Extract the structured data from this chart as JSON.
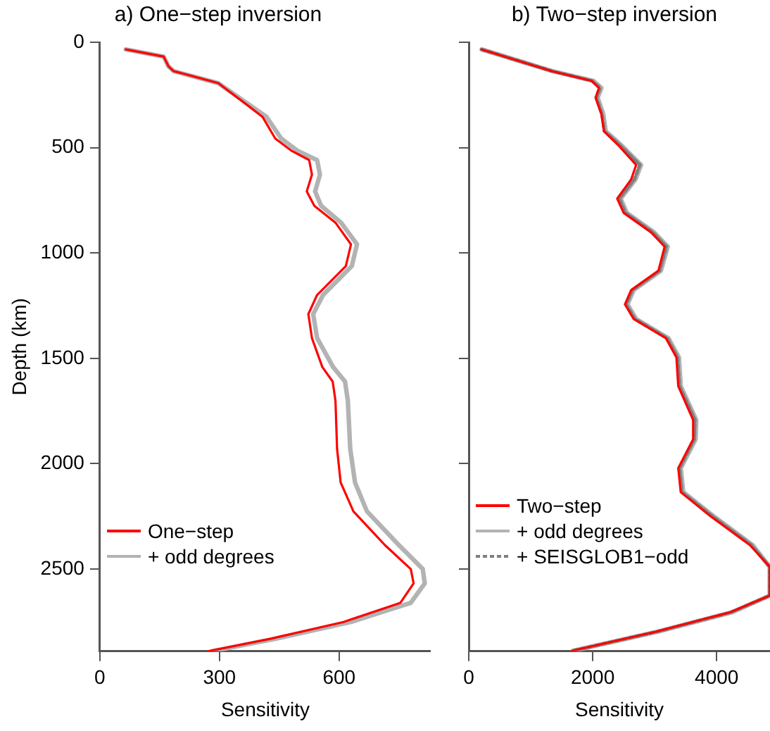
{
  "chart_data": [
    {
      "type": "line",
      "title": "a) One−step inversion",
      "xlabel": "Sensitivity",
      "ylabel": "Depth (km)",
      "xlim": [
        0,
        830
      ],
      "xticks": [
        0,
        300,
        600
      ],
      "ylim": [
        2890,
        0
      ],
      "yticks": [
        0,
        500,
        1000,
        1500,
        2000,
        2500
      ],
      "grid": false,
      "legend": "bottom left",
      "marker": "none",
      "series": [
        {
          "name": "One−step",
          "color": "#ff0000",
          "line_style": "solid",
          "x": [
            65,
            160,
            172,
            185,
            297,
            329,
            369,
            408,
            440,
            480,
            525,
            532,
            519,
            538,
            591,
            630,
            617,
            545,
            523,
            532,
            558,
            584,
            591,
            595,
            604,
            636,
            715,
            780,
            787,
            754,
            611,
            427,
            271
          ],
          "values": [
            34,
            68,
            114,
            137,
            194,
            240,
            297,
            354,
            457,
            514,
            559,
            628,
            708,
            776,
            856,
            959,
            1062,
            1199,
            1290,
            1404,
            1541,
            1610,
            1701,
            1929,
            2089,
            2226,
            2386,
            2500,
            2568,
            2660,
            2751,
            2831,
            2890
          ]
        },
        {
          "name": "+ odd degrees",
          "color": "#b3b3b3",
          "line_style": "solid",
          "x": [
            65,
            160,
            172,
            185,
            297,
            332,
            375,
            418,
            455,
            495,
            545,
            552,
            540,
            555,
            605,
            645,
            632,
            560,
            535,
            545,
            585,
            615,
            622,
            628,
            640,
            670,
            750,
            810,
            815,
            780,
            630,
            440,
            280
          ],
          "values": [
            34,
            68,
            114,
            137,
            194,
            240,
            297,
            354,
            457,
            514,
            559,
            628,
            708,
            776,
            856,
            959,
            1062,
            1199,
            1290,
            1404,
            1541,
            1610,
            1701,
            1929,
            2089,
            2226,
            2386,
            2500,
            2568,
            2660,
            2751,
            2831,
            2890
          ]
        }
      ]
    },
    {
      "type": "line",
      "title": "b) Two−step inversion",
      "xlabel": "Sensitivity",
      "xlim": [
        0,
        4860
      ],
      "xticks": [
        0,
        2000,
        4000
      ],
      "ylim": [
        2890,
        0
      ],
      "yticks": [
        0,
        500,
        1000,
        1500,
        2000,
        2500
      ],
      "tick_labels": "x",
      "grid": false,
      "legend": "bottom left",
      "marker": "none",
      "series": [
        {
          "name": "Two−step",
          "color": "#ff0000",
          "line_style": "solid",
          "x": [
            208,
            1340,
            1980,
            2100,
            2045,
            2140,
            2180,
            2420,
            2700,
            2620,
            2395,
            2500,
            2940,
            3160,
            3060,
            2620,
            2520,
            2660,
            3180,
            3350,
            3380,
            3620,
            3620,
            3380,
            3420,
            3900,
            4535,
            4855,
            4855,
            4215,
            3020,
            1660
          ],
          "values": [
            34,
            137,
            183,
            217,
            263,
            342,
            422,
            491,
            582,
            651,
            742,
            810,
            902,
            970,
            1084,
            1176,
            1244,
            1313,
            1404,
            1495,
            1632,
            1792,
            1884,
            2021,
            2135,
            2249,
            2386,
            2489,
            2626,
            2705,
            2797,
            2888
          ]
        },
        {
          "name": "+ odd degrees",
          "color": "#b3b3b3",
          "line_style": "solid",
          "x": [
            208,
            1350,
            2010,
            2140,
            2080,
            2170,
            2210,
            2470,
            2780,
            2690,
            2450,
            2550,
            2990,
            3210,
            3100,
            2660,
            2560,
            2700,
            3220,
            3390,
            3420,
            3670,
            3660,
            3420,
            3460,
            3950,
            4580,
            4855,
            4855,
            4250,
            3050,
            1680
          ],
          "values": [
            34,
            137,
            183,
            217,
            263,
            342,
            422,
            491,
            582,
            651,
            742,
            810,
            902,
            970,
            1084,
            1176,
            1244,
            1313,
            1404,
            1495,
            1632,
            1792,
            1884,
            2021,
            2135,
            2249,
            2386,
            2489,
            2626,
            2705,
            2797,
            2888
          ]
        },
        {
          "name": "+ SEISGLOB1−odd",
          "color": "#7f7f7f",
          "line_style": "dashed",
          "x": [
            208,
            1345,
            1990,
            2120,
            2060,
            2150,
            2190,
            2450,
            2760,
            2670,
            2430,
            2530,
            2970,
            3190,
            3080,
            2640,
            2540,
            2680,
            3200,
            3370,
            3400,
            3650,
            3640,
            3400,
            3440,
            3930,
            4560,
            4855,
            4855,
            4230,
            3035,
            1670
          ],
          "values": [
            34,
            137,
            183,
            217,
            263,
            342,
            422,
            491,
            582,
            651,
            742,
            810,
            902,
            970,
            1084,
            1176,
            1244,
            1313,
            1404,
            1495,
            1632,
            1792,
            1884,
            2021,
            2135,
            2249,
            2386,
            2489,
            2626,
            2705,
            2797,
            2888
          ]
        }
      ]
    }
  ]
}
